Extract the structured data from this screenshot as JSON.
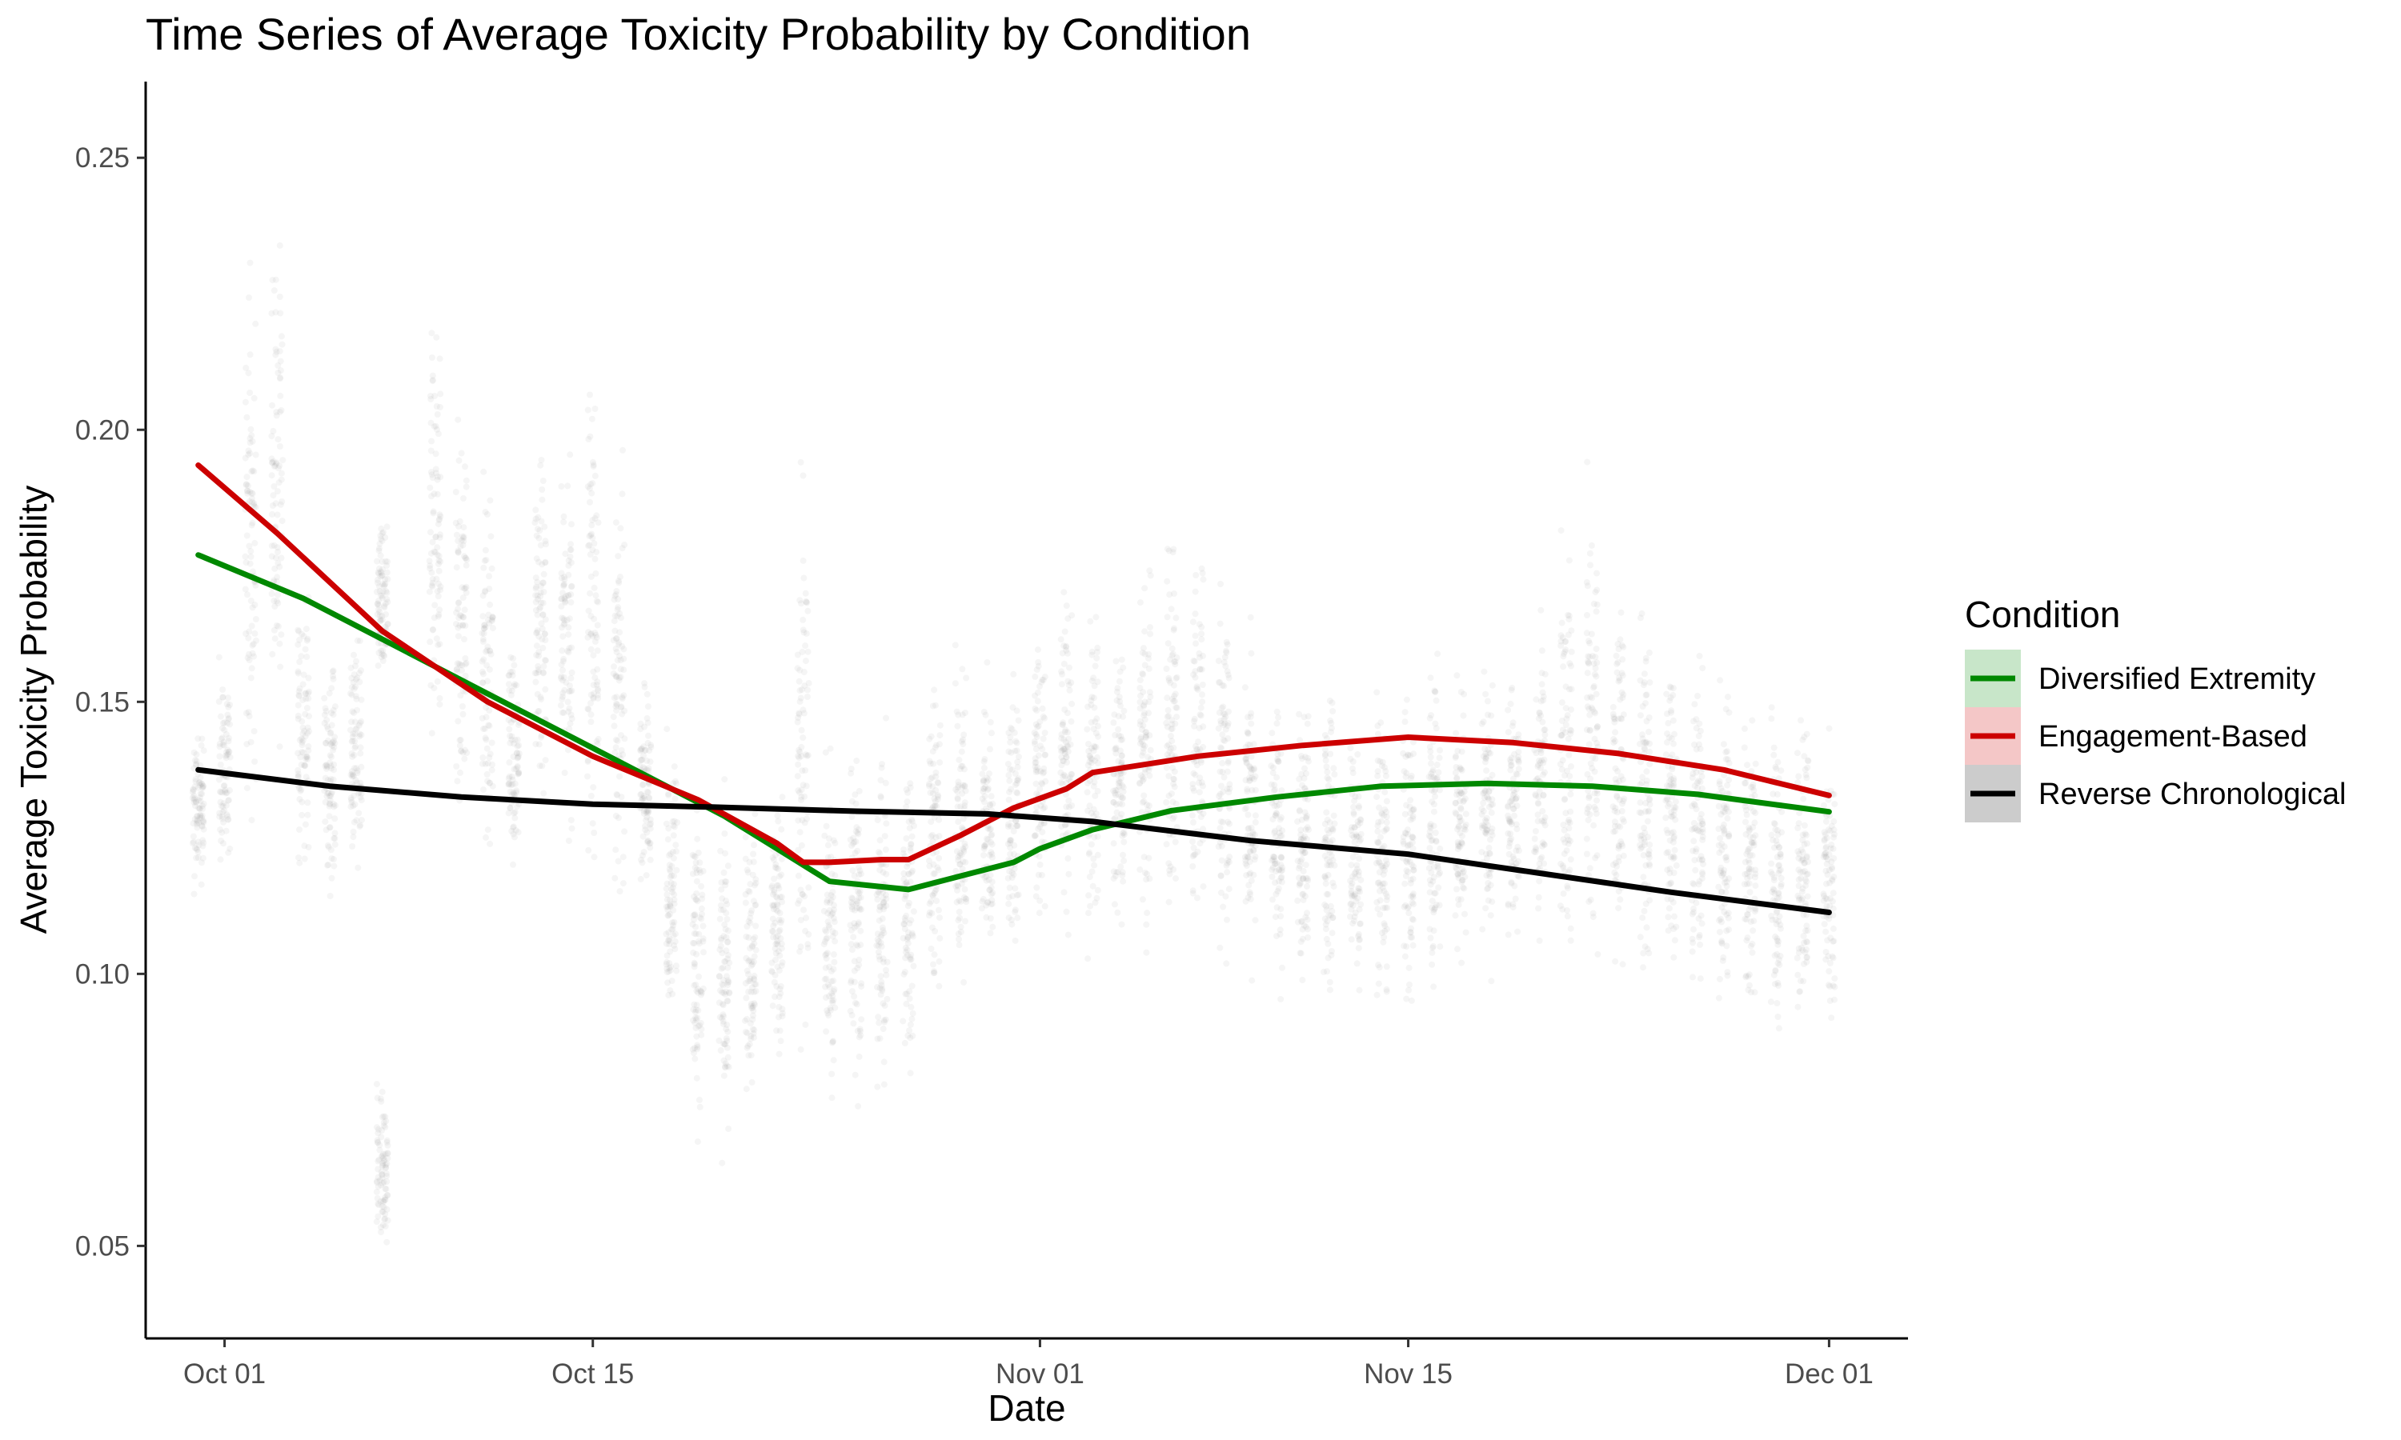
{
  "chart_data": {
    "type": "line",
    "title": "Time Series of Average Toxicity Probability by Condition",
    "xlabel": "Date",
    "ylabel": "Average Toxicity Probability",
    "x_ticks": [
      "Oct 01",
      "Oct 15",
      "Nov 01",
      "Nov 15",
      "Dec 01"
    ],
    "y_ticks": [
      "0.05",
      "0.10",
      "0.15",
      "0.20",
      "0.25"
    ],
    "xlim": [
      "2023-09-28",
      "2023-12-04"
    ],
    "ylim": [
      0.033,
      0.264
    ],
    "grid": false,
    "legend": {
      "title": "Condition",
      "position": "right"
    },
    "series": [
      {
        "name": "Diversified Extremity",
        "color": "#008800",
        "points": [
          [
            "2023-09-30",
            0.177
          ],
          [
            "2023-10-04",
            0.169
          ],
          [
            "2023-10-08",
            0.159
          ],
          [
            "2023-10-12",
            0.149
          ],
          [
            "2023-10-16",
            0.139
          ],
          [
            "2023-10-20",
            0.129
          ],
          [
            "2023-10-22",
            0.123
          ],
          [
            "2023-10-24",
            0.117
          ],
          [
            "2023-10-25",
            0.1165
          ],
          [
            "2023-10-27",
            0.1155
          ],
          [
            "2023-10-29",
            0.118
          ],
          [
            "2023-10-31",
            0.1205
          ],
          [
            "2023-11-01",
            0.123
          ],
          [
            "2023-11-03",
            0.1265
          ],
          [
            "2023-11-06",
            0.13
          ],
          [
            "2023-11-10",
            0.1325
          ],
          [
            "2023-11-14",
            0.1345
          ],
          [
            "2023-11-18",
            0.135
          ],
          [
            "2023-11-22",
            0.1345
          ],
          [
            "2023-11-26",
            0.133
          ],
          [
            "2023-12-01",
            0.1298
          ]
        ]
      },
      {
        "name": "Engagement-Based",
        "color": "#cc0000",
        "points": [
          [
            "2023-09-30",
            0.1935
          ],
          [
            "2023-10-03",
            0.181
          ],
          [
            "2023-10-07",
            0.163
          ],
          [
            "2023-10-11",
            0.15
          ],
          [
            "2023-10-15",
            0.14
          ],
          [
            "2023-10-19",
            0.132
          ],
          [
            "2023-10-22",
            0.124
          ],
          [
            "2023-10-23",
            0.1205
          ],
          [
            "2023-10-24",
            0.1205
          ],
          [
            "2023-10-26",
            0.121
          ],
          [
            "2023-10-27",
            0.121
          ],
          [
            "2023-10-29",
            0.1255
          ],
          [
            "2023-10-31",
            0.1305
          ],
          [
            "2023-11-02",
            0.134
          ],
          [
            "2023-11-03",
            0.137
          ],
          [
            "2023-11-07",
            0.14
          ],
          [
            "2023-11-11",
            0.142
          ],
          [
            "2023-11-15",
            0.1435
          ],
          [
            "2023-11-19",
            0.1425
          ],
          [
            "2023-11-23",
            0.1405
          ],
          [
            "2023-11-27",
            0.1375
          ],
          [
            "2023-12-01",
            0.1328
          ]
        ]
      },
      {
        "name": "Reverse Chronological",
        "color": "#000000",
        "points": [
          [
            "2023-09-30",
            0.1375
          ],
          [
            "2023-10-05",
            0.1345
          ],
          [
            "2023-10-10",
            0.1325
          ],
          [
            "2023-10-15",
            0.1312
          ],
          [
            "2023-10-20",
            0.1306
          ],
          [
            "2023-10-25",
            0.1299
          ],
          [
            "2023-10-30",
            0.1294
          ],
          [
            "2023-11-03",
            0.128
          ],
          [
            "2023-11-09",
            0.1245
          ],
          [
            "2023-11-15",
            0.122
          ],
          [
            "2023-11-20",
            0.1185
          ],
          [
            "2023-11-25",
            0.115
          ],
          [
            "2023-12-01",
            0.1113
          ]
        ]
      }
    ],
    "daily_point_ranges": [
      [
        "2023-09-30",
        0.11,
        0.15
      ],
      [
        "2023-10-01",
        0.115,
        0.16
      ],
      [
        "2023-10-02",
        0.122,
        0.238
      ],
      [
        "2023-10-03",
        0.133,
        0.246
      ],
      [
        "2023-10-04",
        0.11,
        0.18
      ],
      [
        "2023-10-05",
        0.109,
        0.165
      ],
      [
        "2023-10-06",
        0.107,
        0.17
      ],
      [
        "2023-10-07",
        0.043,
        0.083
      ],
      [
        "2023-10-07",
        0.15,
        0.188
      ],
      [
        "2023-10-09",
        0.13,
        0.234
      ],
      [
        "2023-10-10",
        0.124,
        0.21
      ],
      [
        "2023-10-11",
        0.11,
        0.2
      ],
      [
        "2023-10-12",
        0.11,
        0.17
      ],
      [
        "2023-10-13",
        0.12,
        0.21
      ],
      [
        "2023-10-14",
        0.12,
        0.204
      ],
      [
        "2023-10-15",
        0.108,
        0.227
      ],
      [
        "2023-10-16",
        0.105,
        0.2
      ],
      [
        "2023-10-17",
        0.106,
        0.16
      ],
      [
        "2023-10-18",
        0.085,
        0.15
      ],
      [
        "2023-10-19",
        0.066,
        0.14
      ],
      [
        "2023-10-20",
        0.058,
        0.138
      ],
      [
        "2023-10-21",
        0.07,
        0.135
      ],
      [
        "2023-10-22",
        0.074,
        0.14
      ],
      [
        "2023-10-23",
        0.08,
        0.205
      ],
      [
        "2023-10-24",
        0.066,
        0.15
      ],
      [
        "2023-10-25",
        0.07,
        0.152
      ],
      [
        "2023-10-26",
        0.065,
        0.155
      ],
      [
        "2023-10-27",
        0.071,
        0.155
      ],
      [
        "2023-10-28",
        0.085,
        0.165
      ],
      [
        "2023-10-29",
        0.09,
        0.165
      ],
      [
        "2023-10-30",
        0.092,
        0.16
      ],
      [
        "2023-10-31",
        0.095,
        0.165
      ],
      [
        "2023-11-01",
        0.1,
        0.17
      ],
      [
        "2023-11-02",
        0.102,
        0.18
      ],
      [
        "2023-11-03",
        0.098,
        0.175
      ],
      [
        "2023-11-04",
        0.1,
        0.17
      ],
      [
        "2023-11-05",
        0.102,
        0.18
      ],
      [
        "2023-11-06",
        0.1,
        0.192
      ],
      [
        "2023-11-07",
        0.098,
        0.185
      ],
      [
        "2023-11-08",
        0.095,
        0.185
      ],
      [
        "2023-11-09",
        0.093,
        0.17
      ],
      [
        "2023-11-10",
        0.092,
        0.16
      ],
      [
        "2023-11-11",
        0.09,
        0.16
      ],
      [
        "2023-11-12",
        0.088,
        0.16
      ],
      [
        "2023-11-13",
        0.09,
        0.155
      ],
      [
        "2023-11-14",
        0.088,
        0.16
      ],
      [
        "2023-11-15",
        0.087,
        0.158
      ],
      [
        "2023-11-16",
        0.092,
        0.168
      ],
      [
        "2023-11-17",
        0.095,
        0.16
      ],
      [
        "2023-11-18",
        0.096,
        0.162
      ],
      [
        "2023-11-19",
        0.098,
        0.16
      ],
      [
        "2023-11-20",
        0.1,
        0.17
      ],
      [
        "2023-11-21",
        0.095,
        0.19
      ],
      [
        "2023-11-22",
        0.09,
        0.2
      ],
      [
        "2023-11-23",
        0.094,
        0.18
      ],
      [
        "2023-11-24",
        0.09,
        0.175
      ],
      [
        "2023-11-25",
        0.093,
        0.17
      ],
      [
        "2023-11-26",
        0.09,
        0.165
      ],
      [
        "2023-11-27",
        0.086,
        0.162
      ],
      [
        "2023-11-28",
        0.082,
        0.158
      ],
      [
        "2023-11-29",
        0.08,
        0.16
      ],
      [
        "2023-11-30",
        0.078,
        0.16
      ],
      [
        "2023-12-01",
        0.082,
        0.155
      ]
    ]
  }
}
